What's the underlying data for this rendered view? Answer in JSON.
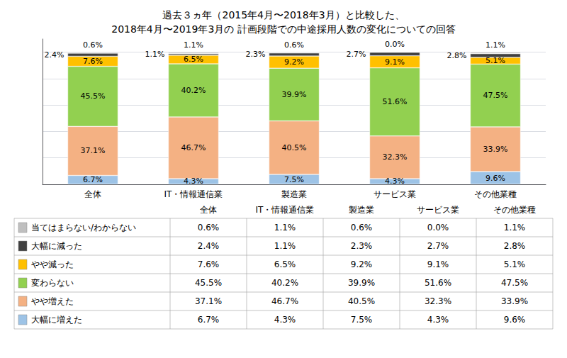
{
  "chart_data": {
    "type": "bar",
    "title": "過去３ヵ年（2015年4月〜2018年3月）と比較した、\n2018年4月〜2019年3月の 計画段階での中途採用人数の変化についての回答",
    "categories": [
      "全体",
      "IT・情報通信業",
      "製造業",
      "サービス業",
      "その他業種"
    ],
    "series": [
      {
        "name": "当てはまらない/わからない",
        "color": "#bfbfbf",
        "values": [
          0.6,
          1.1,
          0.6,
          0.0,
          1.1
        ],
        "value_labels": [
          "0.6%",
          "1.1%",
          "0.6%",
          "0.0%",
          "1.1%"
        ]
      },
      {
        "name": "大幅に減った",
        "color": "#404040",
        "values": [
          2.4,
          1.1,
          2.3,
          2.7,
          2.8
        ],
        "value_labels": [
          "2.4%",
          "1.1%",
          "2.3%",
          "2.7%",
          "2.8%"
        ]
      },
      {
        "name": "やや減った",
        "color": "#ffc000",
        "values": [
          7.6,
          6.5,
          9.2,
          9.1,
          5.1
        ],
        "value_labels": [
          "7.6%",
          "6.5%",
          "9.2%",
          "9.1%",
          "5.1%"
        ]
      },
      {
        "name": "変わらない",
        "color": "#92d050",
        "values": [
          45.5,
          40.2,
          39.9,
          51.6,
          47.5
        ],
        "value_labels": [
          "45.5%",
          "40.2%",
          "39.9%",
          "51.6%",
          "47.5%"
        ]
      },
      {
        "name": "やや増えた",
        "color": "#f4b183",
        "values": [
          37.1,
          46.7,
          40.5,
          32.3,
          33.9
        ],
        "value_labels": [
          "37.1%",
          "46.7%",
          "40.5%",
          "32.3%",
          "33.9%"
        ]
      },
      {
        "name": "大幅に増えた",
        "color": "#9dc3e6",
        "values": [
          6.7,
          4.3,
          7.5,
          4.3,
          9.6
        ],
        "value_labels": [
          "6.7%",
          "4.3%",
          "7.5%",
          "4.3%",
          "9.6%"
        ]
      }
    ],
    "stacked": true,
    "ylim": [
      0,
      110
    ],
    "yticks": [
      0,
      20,
      40,
      60,
      80,
      100
    ],
    "grid": true,
    "legend": "bottom",
    "data_labels": true,
    "tick_labels": "x"
  }
}
